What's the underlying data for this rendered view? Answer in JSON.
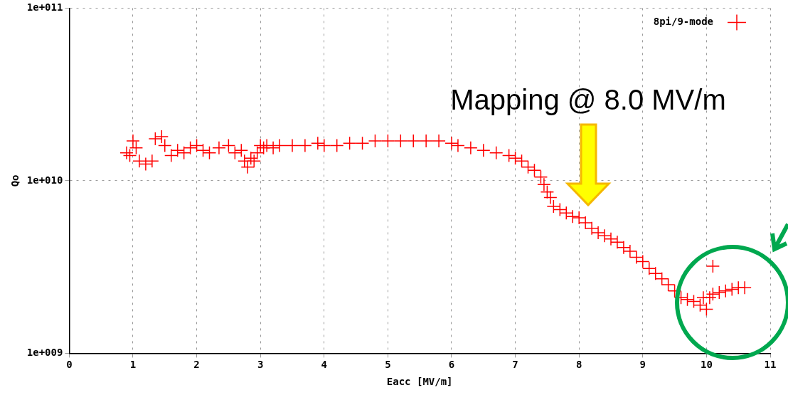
{
  "chart_data": {
    "type": "scatter",
    "xlabel": "Eacc [MV/m]",
    "ylabel": "Qo",
    "log": "y",
    "grid": true,
    "legend": "top right",
    "marker": "cross",
    "xlim": [
      0,
      11
    ],
    "xticks": [
      0,
      1,
      2,
      3,
      4,
      5,
      6,
      7,
      8,
      9,
      10,
      11
    ],
    "ylim": [
      1000000000.0,
      100000000000.0
    ],
    "yticks": [
      {
        "value": 1000000000.0,
        "label": "1e+009"
      },
      {
        "value": 10000000000.0,
        "label": "1e+010"
      },
      {
        "value": 100000000000.0,
        "label": "1e+011"
      }
    ],
    "annotations": [
      "Mapping @ 8.0 MV/m"
    ],
    "series": [
      {
        "name": "8pi/9-mode",
        "color": "#ff0000",
        "x": [
          0.9,
          0.95,
          1.0,
          1.05,
          1.1,
          1.2,
          1.3,
          1.35,
          1.45,
          1.5,
          1.6,
          1.7,
          1.8,
          1.9,
          2.0,
          2.1,
          2.2,
          2.35,
          2.5,
          2.6,
          2.7,
          2.75,
          2.8,
          2.85,
          2.9,
          2.95,
          3.0,
          3.05,
          3.1,
          3.2,
          3.3,
          3.5,
          3.7,
          3.9,
          4.0,
          4.2,
          4.4,
          4.6,
          4.8,
          5.0,
          5.2,
          5.4,
          5.6,
          5.8,
          6.0,
          6.1,
          6.3,
          6.5,
          6.7,
          6.9,
          7.0,
          7.1,
          7.2,
          7.3,
          7.4,
          7.45,
          7.5,
          7.55,
          7.6,
          7.7,
          7.8,
          7.9,
          8.0,
          8.1,
          8.2,
          8.3,
          8.4,
          8.5,
          8.6,
          8.7,
          8.8,
          8.9,
          9.0,
          9.1,
          9.2,
          9.3,
          9.4,
          9.5,
          9.6,
          9.7,
          9.8,
          9.9,
          9.95,
          10.0,
          10.05,
          10.1,
          10.2,
          10.3,
          10.4,
          10.5,
          10.6
        ],
        "values": [
          14500000000.0,
          14000000000.0,
          17000000000.0,
          15500000000.0,
          13000000000.0,
          12500000000.0,
          13000000000.0,
          17500000000.0,
          18000000000.0,
          16000000000.0,
          14000000000.0,
          15000000000.0,
          14500000000.0,
          15500000000.0,
          16000000000.0,
          15000000000.0,
          14500000000.0,
          15500000000.0,
          16000000000.0,
          14500000000.0,
          15000000000.0,
          13000000000.0,
          12000000000.0,
          13500000000.0,
          13000000000.0,
          14500000000.0,
          16000000000.0,
          15500000000.0,
          16000000000.0,
          15500000000.0,
          16000000000.0,
          16000000000.0,
          16000000000.0,
          16500000000.0,
          16000000000.0,
          16000000000.0,
          16500000000.0,
          16500000000.0,
          17000000000.0,
          17000000000.0,
          17000000000.0,
          17000000000.0,
          17000000000.0,
          17000000000.0,
          16500000000.0,
          16000000000.0,
          15500000000.0,
          15000000000.0,
          14500000000.0,
          14000000000.0,
          13500000000.0,
          13000000000.0,
          12000000000.0,
          11500000000.0,
          10500000000.0,
          9500000000.0,
          8600000000.0,
          8000000000.0,
          7100000000.0,
          6800000000.0,
          6500000000.0,
          6200000000.0,
          6100000000.0,
          5700000000.0,
          5300000000.0,
          5000000000.0,
          4800000000.0,
          4600000000.0,
          4400000000.0,
          4100000000.0,
          3900000000.0,
          3600000000.0,
          3400000000.0,
          3100000000.0,
          2900000000.0,
          2700000000.0,
          2500000000.0,
          2300000000.0,
          2100000000.0,
          2050000000.0,
          2000000000.0,
          1900000000.0,
          2100000000.0,
          1800000000.0,
          2100000000.0,
          2200000000.0,
          2250000000.0,
          2300000000.0,
          2350000000.0,
          2400000000.0,
          2400000000.0
        ]
      },
      {
        "color": "#ff0000",
        "x": [
          10.1
        ],
        "values": [
          3200000000.0
        ]
      }
    ]
  }
}
